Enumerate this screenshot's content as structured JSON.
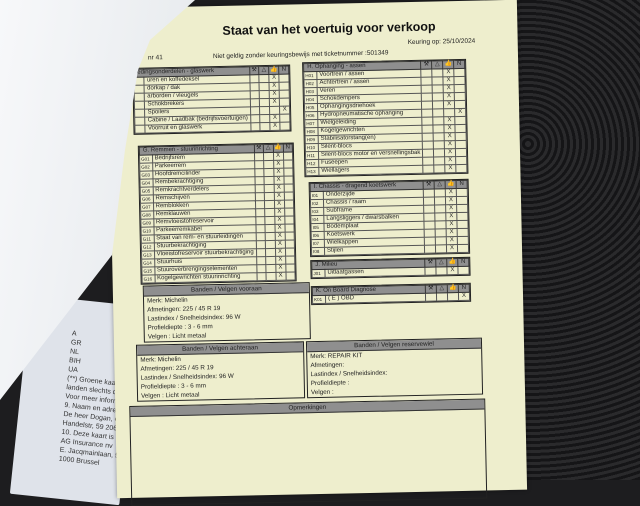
{
  "document": {
    "title": "Staat van het voertuig voor verkoop",
    "validity": "Niet geldig  zonder keuringsbewijs met ticketnummer :501349",
    "inspection_date": "Keuring op: 25/10/2024",
    "number_fragment": "nr 41",
    "icon_columns": [
      "wrench-icon",
      "warning-icon",
      "thumbs-up-icon",
      "N"
    ],
    "sections": [
      {
        "id": "F",
        "title": "edingsonderdelen - glaswerk",
        "rows": [
          {
            "code": "",
            "label": "uren en koffedeksel",
            "mark": 3
          },
          {
            "code": "",
            "label": "dorkap / dak",
            "mark": 3
          },
          {
            "code": "",
            "label": "arborden / vleugels",
            "mark": 3
          },
          {
            "code": "",
            "label": "Schokbrekers",
            "mark": 3
          },
          {
            "code": "",
            "label": "Spoilers",
            "mark": 4
          },
          {
            "code": "",
            "label": "Cabine / Laadbak (bedrijfsvoertuigen)",
            "mark": 3
          },
          {
            "code": "",
            "label": "Voorruit en glaswerk",
            "mark": 3
          }
        ]
      },
      {
        "id": "G",
        "title": "G. Remmen - stuurinrichting",
        "rows": [
          {
            "code": "G01",
            "label": "Bedrijfsrem",
            "mark": 3
          },
          {
            "code": "G02",
            "label": "Parkeerrem",
            "mark": 3
          },
          {
            "code": "G03",
            "label": "Hoofdremcilinder",
            "mark": 3
          },
          {
            "code": "G04",
            "label": "Rembekrachtiging",
            "mark": 3
          },
          {
            "code": "G05",
            "label": "Remkrachtverdelers",
            "mark": 3
          },
          {
            "code": "G06",
            "label": "Remschijven",
            "mark": 3
          },
          {
            "code": "G07",
            "label": "Remblokken",
            "mark": 3
          },
          {
            "code": "G08",
            "label": "Remklauwen",
            "mark": 3
          },
          {
            "code": "G09",
            "label": "Remvloeistofreservoir",
            "mark": 3
          },
          {
            "code": "G10",
            "label": "Parkeerremkabel",
            "mark": 3
          },
          {
            "code": "G11",
            "label": "Staat van rem- en stuurleidingen",
            "mark": 3
          },
          {
            "code": "G12",
            "label": "Stuurbekrachtiging",
            "mark": 3
          },
          {
            "code": "G13",
            "label": "Vloeistofreservoir stuurbekrachtiging",
            "mark": 3
          },
          {
            "code": "G14",
            "label": "Stuurhuis",
            "mark": 3
          },
          {
            "code": "G15",
            "label": "Stuuroverbrengingselementen",
            "mark": 3
          },
          {
            "code": "G16",
            "label": "Kogelgewrichten stuurinrichting",
            "mark": 3
          }
        ]
      },
      {
        "id": "H",
        "title": "H. Ophanging - assen",
        "rows": [
          {
            "code": "H01",
            "label": "Voortrein / assen",
            "mark": 3
          },
          {
            "code": "H02",
            "label": "Achtertrein / assen",
            "mark": 3
          },
          {
            "code": "H03",
            "label": "Veren",
            "mark": 3
          },
          {
            "code": "H04",
            "label": "Schokdempers",
            "mark": 3
          },
          {
            "code": "H05",
            "label": "Ophangingsdriehoek",
            "mark": 3
          },
          {
            "code": "H06",
            "label": "Hydropneumatische ophanging",
            "mark": 4
          },
          {
            "code": "H07",
            "label": "Wielgeleiding",
            "mark": 3
          },
          {
            "code": "H08",
            "label": "Kogelgewrichten",
            "mark": 3
          },
          {
            "code": "H09",
            "label": "Stabilisatorstang(en)",
            "mark": 3
          },
          {
            "code": "H10",
            "label": "Silent-blocs",
            "mark": 3
          },
          {
            "code": "H11",
            "label": "Silent-blocs motor en versnellingsbak",
            "mark": 3
          },
          {
            "code": "H12",
            "label": "Fuseepen",
            "mark": 3
          },
          {
            "code": "H13",
            "label": "Wiellagers",
            "mark": 3
          }
        ]
      },
      {
        "id": "I",
        "title": "I. Chassis - dragend koetswerk",
        "rows": [
          {
            "code": "I01",
            "label": "Onderzijde",
            "mark": 3
          },
          {
            "code": "I02",
            "label": "Chassis / raam",
            "mark": 3
          },
          {
            "code": "I03",
            "label": "Subframe",
            "mark": 3
          },
          {
            "code": "I04",
            "label": "Langsliggers / dwarsbalken",
            "mark": 3
          },
          {
            "code": "I05",
            "label": "Bodemplaat",
            "mark": 3
          },
          {
            "code": "I06",
            "label": "Koetswerk",
            "mark": 3
          },
          {
            "code": "I07",
            "label": "Wielkappen",
            "mark": 3
          },
          {
            "code": "I08",
            "label": "Stijlen",
            "mark": 3
          }
        ]
      },
      {
        "id": "J",
        "title": "J. Milieu",
        "rows": [
          {
            "code": "J01",
            "label": "Uitlaatgassen",
            "mark": 3
          }
        ]
      },
      {
        "id": "K",
        "title": "K. On Board Diagnose",
        "rows": [
          {
            "code": "K01",
            "label": "( E ) OBD",
            "mark": 4
          }
        ]
      }
    ],
    "tyres": {
      "front": {
        "title": "Banden / Velgen vooraan",
        "lines": [
          "Merk: Michelin",
          "Afmetingen:  225 / 45 R 19",
          "Lastindex / Snelheidsindex: 96 W",
          "Profieldiepte : 3 - 6 mm",
          "Velgen :  Licht metaal"
        ]
      },
      "rear": {
        "title": "Banden / Velgen achteraan",
        "lines": [
          "Merk: Michelin",
          "Afmetingen:  225 / 45 R 19",
          "Lastindex / Snelheidsindex: 96 W",
          "Profieldiepte : 3 - 6 mm",
          "Velgen :  Licht metaal"
        ]
      },
      "spare": {
        "title": "Banden / Velgen reservewiel",
        "lines": [
          "Merk: REPAIR KIT",
          "Afmetingen:",
          "Lastindex / Snelheidsindex:",
          "Profieldiepte :",
          "Velgen :"
        ]
      }
    },
    "remarks_title": "Opmerkingen",
    "mark_symbol": "X"
  },
  "underlying_card": {
    "lines": [
      "A",
      "GR",
      "NL",
      "BIH",
      "UA",
      "(**) Groene kaarten d",
      "landen slechts dekkin",
      "Voor meer informatie",
      "9. Naam en adres van",
      "De heer Dogan, Oz",
      "Handelstr, 59 2060",
      "10. Deze kaart is afgeg",
      "AG Insurance nv",
      "E. Jacqmainlaan, 53",
      "1000 Brussel"
    ]
  }
}
